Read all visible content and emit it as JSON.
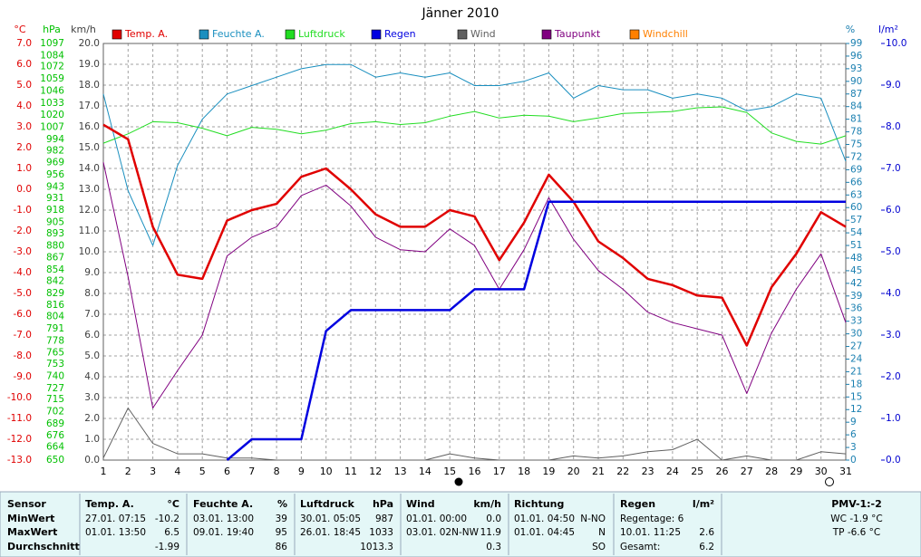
{
  "chart_data": {
    "type": "line",
    "title": "Jänner 2010",
    "x": [
      1,
      2,
      3,
      4,
      5,
      6,
      7,
      8,
      9,
      10,
      11,
      12,
      13,
      14,
      15,
      16,
      17,
      18,
      19,
      20,
      21,
      22,
      23,
      24,
      25,
      26,
      27,
      28,
      29,
      30,
      31
    ],
    "xlim": [
      1,
      31
    ],
    "xticks": [
      1,
      2,
      3,
      4,
      5,
      6,
      7,
      8,
      9,
      10,
      11,
      12,
      13,
      14,
      15,
      16,
      17,
      18,
      19,
      20,
      21,
      22,
      23,
      24,
      25,
      26,
      27,
      28,
      29,
      30,
      31
    ],
    "grid": true,
    "axes": {
      "temp": {
        "label": "°C",
        "color": "#e00000",
        "lim": [
          -13,
          7
        ],
        "ticks": [
          {
            "value": 7,
            "label": "7.0"
          },
          {
            "value": 6,
            "label": "6.0"
          },
          {
            "value": 5,
            "label": "5.0"
          },
          {
            "value": 4,
            "label": "4.0"
          },
          {
            "value": 3,
            "label": "3.0"
          },
          {
            "value": 2,
            "label": "2.0"
          },
          {
            "value": 1,
            "label": "1.0"
          },
          {
            "value": 0,
            "label": "0.0"
          },
          {
            "value": -1,
            "label": "-1.0"
          },
          {
            "value": -2,
            "label": "-2.0"
          },
          {
            "value": -3,
            "label": "-3.0"
          },
          {
            "value": -4,
            "label": "-4.0"
          },
          {
            "value": -5,
            "label": "-5.0"
          },
          {
            "value": -6,
            "label": "-6.0"
          },
          {
            "value": -7,
            "label": "-7.0"
          },
          {
            "value": -8,
            "label": "-8.0"
          },
          {
            "value": -9,
            "label": "-9.0"
          },
          {
            "value": -10,
            "label": "-10.0"
          },
          {
            "value": -11,
            "label": "-11.0"
          },
          {
            "value": -12,
            "label": "-12.0"
          },
          {
            "value": -13,
            "label": "-13.0"
          }
        ]
      },
      "pres": {
        "label": "hPa",
        "color": "#00c000",
        "lim": [
          650,
          1097
        ],
        "ticks": [
          1097,
          1084,
          1072,
          1059,
          1046,
          1033,
          1020,
          1007,
          994,
          982,
          969,
          956,
          943,
          931,
          918,
          905,
          893,
          880,
          867,
          854,
          842,
          829,
          816,
          804,
          791,
          778,
          765,
          753,
          740,
          727,
          715,
          702,
          689,
          676,
          664,
          650
        ]
      },
      "wind": {
        "label": "km/h",
        "color": "#404040",
        "lim": [
          0,
          20
        ],
        "ticks": [
          {
            "value": 20,
            "label": "20.0"
          },
          {
            "value": 19,
            "label": "19.0"
          },
          {
            "value": 18,
            "label": "18.0"
          },
          {
            "value": 17,
            "label": "17.0"
          },
          {
            "value": 16,
            "label": "16.0"
          },
          {
            "value": 15,
            "label": "15.0"
          },
          {
            "value": 14,
            "label": "14.0"
          },
          {
            "value": 13,
            "label": "13.0"
          },
          {
            "value": 12,
            "label": "12.0"
          },
          {
            "value": 11,
            "label": "11.0"
          },
          {
            "value": 10,
            "label": "10.0"
          },
          {
            "value": 9,
            "label": "9.0"
          },
          {
            "value": 8,
            "label": "8.0"
          },
          {
            "value": 7,
            "label": "7.0"
          },
          {
            "value": 6,
            "label": "6.0"
          },
          {
            "value": 5,
            "label": "5.0"
          },
          {
            "value": 4,
            "label": "4.0"
          },
          {
            "value": 3,
            "label": "3.0"
          },
          {
            "value": 2,
            "label": "2.0"
          },
          {
            "value": 1,
            "label": "1.0"
          },
          {
            "value": 0,
            "label": "0.0"
          }
        ]
      },
      "hum": {
        "label": "%",
        "color": "#1a7fb0",
        "lim": [
          0,
          99
        ],
        "ticks": [
          99,
          96,
          93,
          90,
          87,
          84,
          81,
          78,
          75,
          72,
          69,
          66,
          63,
          60,
          57,
          54,
          51,
          48,
          45,
          42,
          39,
          36,
          33,
          30,
          27,
          24,
          21,
          18,
          15,
          12,
          9,
          6,
          3,
          0
        ]
      },
      "rain": {
        "label": "l/m²",
        "color": "#0000d0",
        "lim": [
          0,
          10
        ],
        "ticks": [
          {
            "value": 10,
            "label": "10.0"
          },
          {
            "value": 9,
            "label": "9.0"
          },
          {
            "value": 8,
            "label": "8.0"
          },
          {
            "value": 7,
            "label": "7.0"
          },
          {
            "value": 6,
            "label": "6.0"
          },
          {
            "value": 5,
            "label": "5.0"
          },
          {
            "value": 4,
            "label": "4.0"
          },
          {
            "value": 3,
            "label": "3.0"
          },
          {
            "value": 2,
            "label": "2.0"
          },
          {
            "value": 1,
            "label": "1.0"
          },
          {
            "value": 0,
            "label": "0.0"
          }
        ]
      }
    },
    "series": [
      {
        "name": "Temp. A.",
        "color": "#e00000",
        "axis": "temp",
        "width": 2.5,
        "values": [
          3.1,
          2.4,
          -1.8,
          -4.1,
          -4.3,
          -1.5,
          -1.0,
          -0.7,
          0.6,
          1.0,
          0.0,
          -1.2,
          -1.8,
          -1.8,
          -1.0,
          -1.3,
          -3.4,
          -1.6,
          0.7,
          -0.6,
          -2.5,
          -3.3,
          -4.3,
          -4.6,
          -5.1,
          -5.2,
          -7.5,
          -4.7,
          -3.1,
          -1.1,
          -1.8
        ]
      },
      {
        "name": "Feuchte A.",
        "color": "#1a8fbf",
        "axis": "hum",
        "width": 1,
        "values": [
          87,
          64,
          51,
          70,
          81,
          87,
          89,
          91,
          93,
          94,
          94,
          91,
          92,
          91,
          92,
          89,
          89,
          90,
          92,
          86,
          89,
          88,
          88,
          86,
          87,
          86,
          83,
          84,
          87,
          86,
          71
        ]
      },
      {
        "name": "Luftdruck",
        "color": "#22dd22",
        "axis": "pres",
        "width": 1,
        "values": [
          990,
          1000,
          1013,
          1012,
          1006,
          998,
          1007,
          1005,
          1000,
          1004,
          1011,
          1013,
          1010,
          1012,
          1019,
          1024,
          1017,
          1020,
          1019,
          1013,
          1017,
          1022,
          1023,
          1024,
          1028,
          1029,
          1023,
          1001,
          992,
          989,
          998
        ]
      },
      {
        "name": "Regen",
        "color": "#0000e0",
        "axis": "rain",
        "width": 2.5,
        "values": [
          null,
          null,
          null,
          null,
          null,
          0,
          0.5,
          0.5,
          0.5,
          3.1,
          3.6,
          3.6,
          3.6,
          3.6,
          3.6,
          4.1,
          4.1,
          4.1,
          6.2,
          6.2,
          6.2,
          6.2,
          6.2,
          6.2,
          6.2,
          6.2,
          6.2,
          6.2,
          6.2,
          6.2,
          6.2
        ]
      },
      {
        "name": "Wind",
        "color": "#606060",
        "axis": "wind",
        "width": 1,
        "values": [
          0.1,
          2.5,
          0.8,
          0.3,
          0.3,
          0.1,
          0.1,
          0,
          0,
          0,
          0,
          0,
          0,
          0,
          0.3,
          0.1,
          0,
          0,
          0,
          0.2,
          0.1,
          0.2,
          0.4,
          0.5,
          1.0,
          0,
          0.2,
          0,
          0,
          0.4,
          0.3
        ]
      },
      {
        "name": "Taupunkt",
        "color": "#800080",
        "axis": "temp",
        "width": 1,
        "values": [
          1.3,
          -4.2,
          -10.5,
          -8.7,
          -7.0,
          -3.2,
          -2.3,
          -1.8,
          -0.3,
          0.2,
          -0.8,
          -2.3,
          -2.9,
          -3.0,
          -1.9,
          -2.7,
          -4.8,
          -2.9,
          -0.4,
          -2.4,
          -3.9,
          -4.8,
          -5.9,
          -6.4,
          -6.7,
          -7.0,
          -9.8,
          -6.9,
          -4.8,
          -3.1,
          -6.4
        ]
      },
      {
        "name": "Windchill",
        "color": "#ff8000",
        "axis": "temp"
      }
    ]
  },
  "summary": {
    "row_labels": [
      "Sensor",
      "MinWert",
      "MaxWert",
      "Durchschnitt"
    ],
    "columns": [
      {
        "title": "Temp. A.",
        "unit": "°C",
        "rows": [
          {
            "date": "27.01. 07:15",
            "value": "-10.2"
          },
          {
            "date": "01.01. 13:50",
            "value": "6.5"
          },
          {
            "value": "-1.99"
          }
        ]
      },
      {
        "title": "Feuchte A.",
        "unit": "%",
        "rows": [
          {
            "date": "03.01. 13:00",
            "value": "39"
          },
          {
            "date": "09.01. 19:40",
            "value": "95"
          },
          {
            "value": "86"
          }
        ]
      },
      {
        "title": "Luftdruck",
        "unit": "hPa",
        "rows": [
          {
            "date": "30.01. 05:05",
            "value": "987"
          },
          {
            "date": "26.01. 18:45",
            "value": "1033"
          },
          {
            "value": "1013.3"
          }
        ]
      },
      {
        "title": "Wind",
        "unit": "km/h",
        "rows": [
          {
            "date": "01.01. 00:00",
            "value": "0.0"
          },
          {
            "date": "03.01. 02N-NW",
            "value": "11.9"
          },
          {
            "value": "0.3"
          }
        ]
      },
      {
        "title": "Richtung",
        "rows": [
          {
            "date": "01.01. 04:50",
            "value": "N-NO"
          },
          {
            "date": "01.01. 04:45",
            "value": "N"
          },
          {
            "value": "SO"
          }
        ]
      },
      {
        "title": "Regen",
        "unit": "l/m²",
        "rows": [
          {
            "date": "Regentage: 6"
          },
          {
            "date": "10.01. 11:25",
            "value": "2.6"
          },
          {
            "date": "Gesamt:",
            "value": "6.2"
          }
        ]
      }
    ],
    "pmv": {
      "title": "PMV-1:-2",
      "lines": [
        "WC -1.9 °C",
        "TP -6.6 °C"
      ]
    }
  }
}
